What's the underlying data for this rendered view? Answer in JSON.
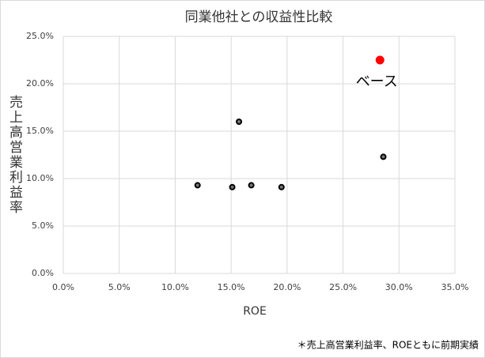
{
  "chart_data": {
    "type": "scatter",
    "title": "同業他社との収益性比較",
    "x_label": "ROE",
    "y_label": "売上高営業利益率",
    "series": [
      {
        "color": "#000000",
        "x": [
          12.0,
          15.1,
          15.7,
          16.8,
          19.5,
          28.6
        ],
        "values": [
          9.3,
          9.1,
          16.0,
          9.3,
          9.1,
          12.3
        ]
      },
      {
        "color": "#ff0000",
        "x": [
          28.3
        ],
        "values": [
          22.5
        ]
      }
    ],
    "annotations": [
      "ベース"
    ],
    "footnote": "＊売上高営業利益率、ROEともに前期実績",
    "xlim": [
      0,
      35
    ],
    "ylim": [
      0,
      25
    ],
    "xticks": [
      {
        "value": 0,
        "label": "0.0%"
      },
      {
        "value": 5,
        "label": "5.0%"
      },
      {
        "value": 10,
        "label": "10.0%"
      },
      {
        "value": 15,
        "label": "15.0%"
      },
      {
        "value": 20,
        "label": "20.0%"
      },
      {
        "value": 25,
        "label": "25.0%"
      },
      {
        "value": 30,
        "label": "30.0%"
      },
      {
        "value": 35,
        "label": "35.0%"
      }
    ],
    "yticks": [
      {
        "value": 0,
        "label": "0.0%"
      },
      {
        "value": 5,
        "label": "5.0%"
      },
      {
        "value": 10,
        "label": "10.0%"
      },
      {
        "value": 15,
        "label": "15.0%"
      },
      {
        "value": 20,
        "label": "20.0%"
      },
      {
        "value": 25,
        "label": "25.0%"
      }
    ],
    "grid": true
  }
}
